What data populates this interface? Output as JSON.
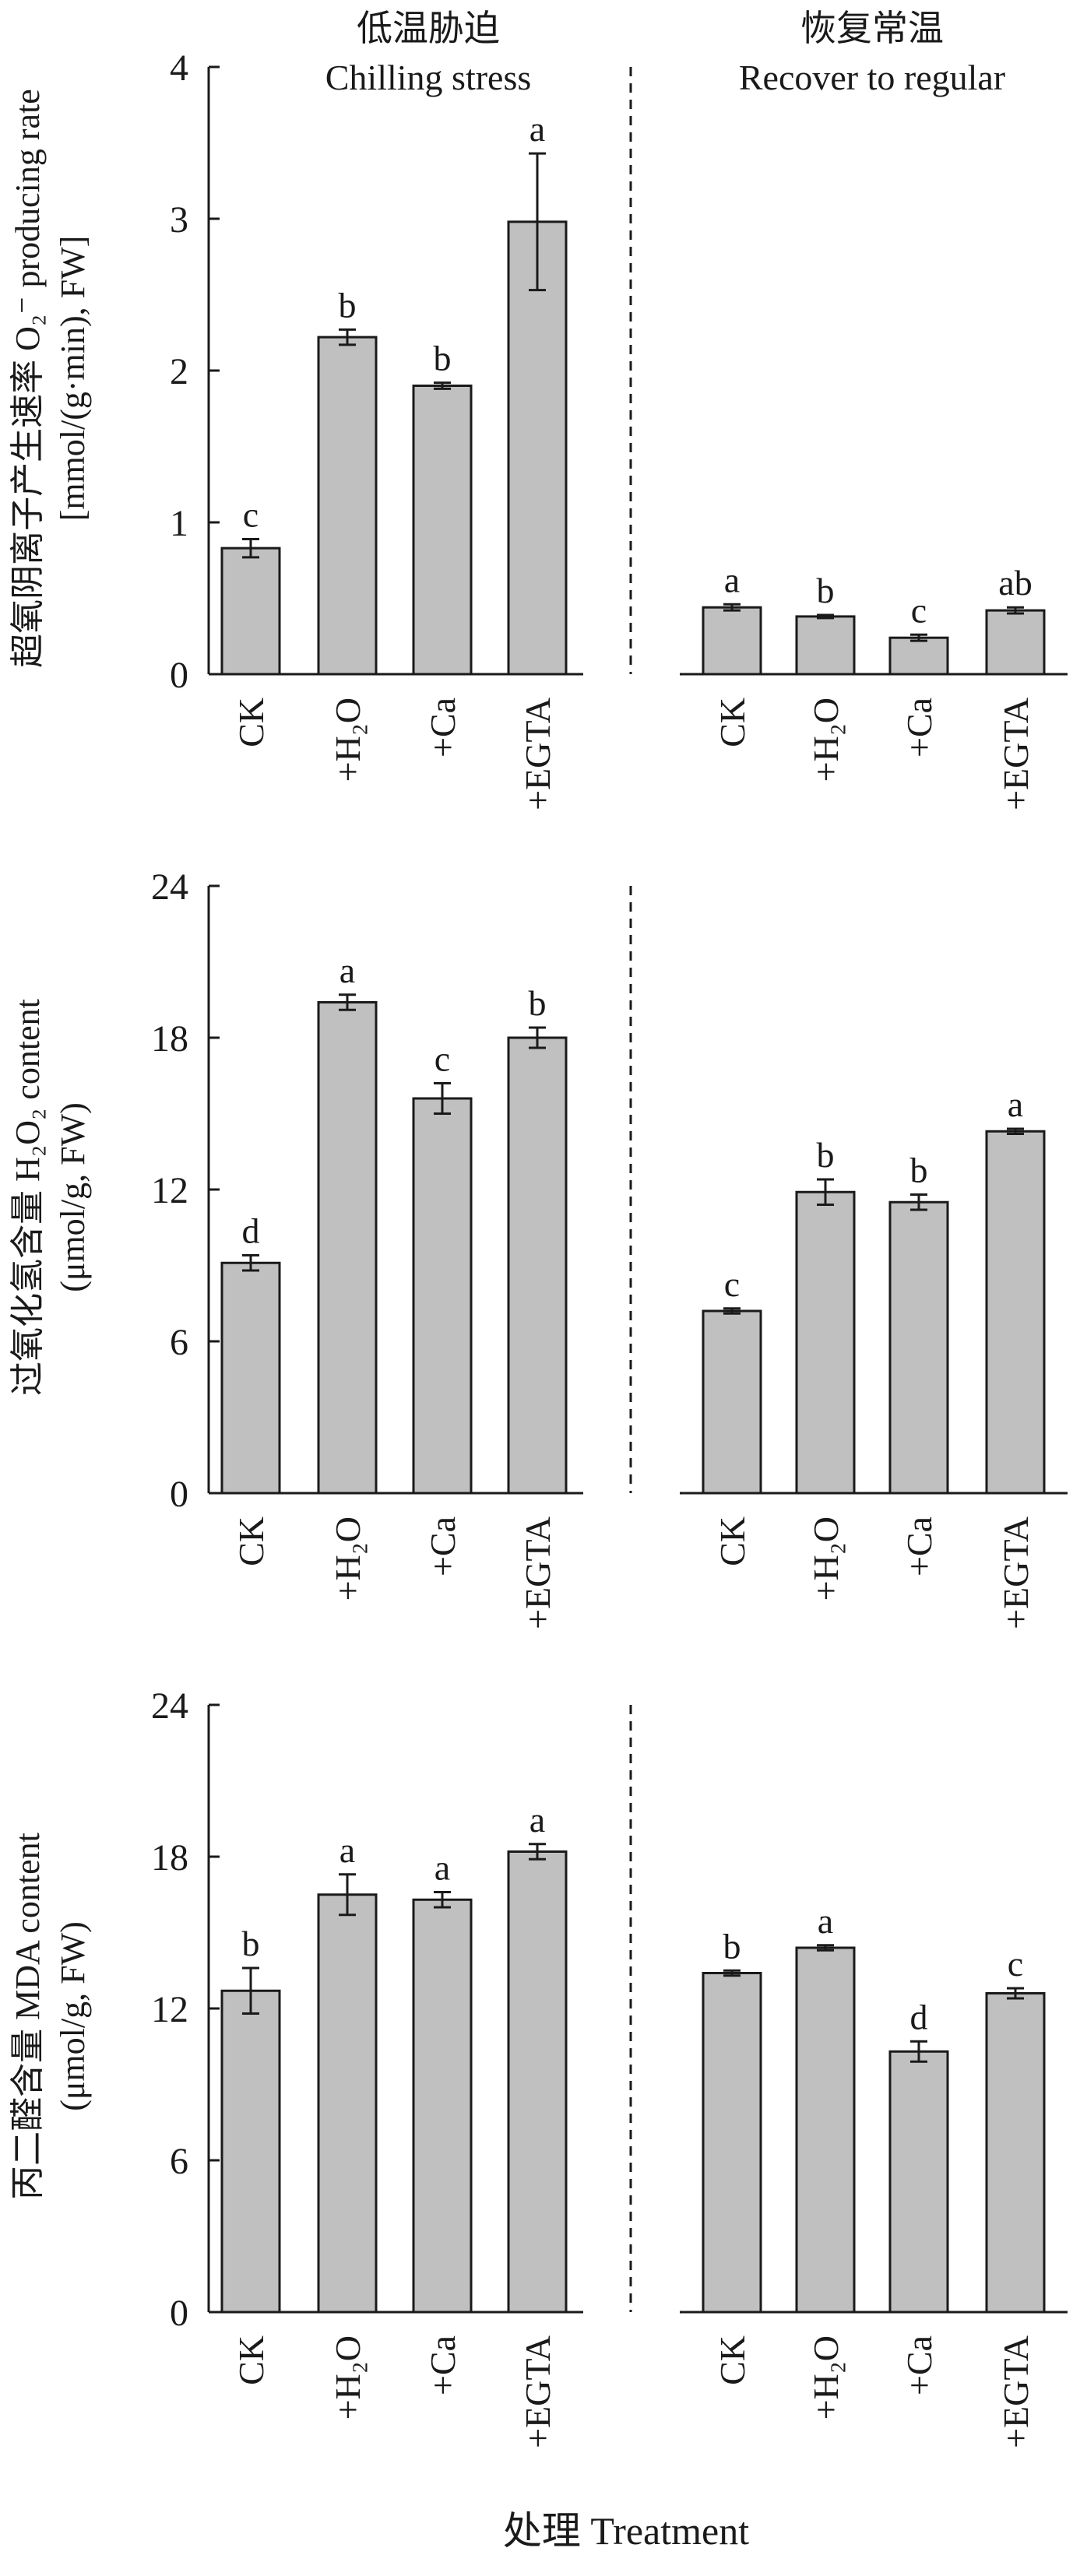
{
  "headers": {
    "left_cn": "低温胁迫",
    "left_en": "Chilling stress",
    "right_cn": "恢复常温",
    "right_en": "Recover to regular"
  },
  "xlabel": "处理 Treatment",
  "style": {
    "bar_fill": "#c0c0c0",
    "stroke": "#1a1a1a"
  },
  "chart_data": [
    {
      "type": "bar",
      "ylabel_lines": [
        "超氧阴离子产生速率 O₂⁻ producing rate",
        "[mmol/(g·min), FW]"
      ],
      "ylim": [
        0,
        4
      ],
      "yticks": [
        0,
        1,
        2,
        3,
        4
      ],
      "groups": [
        {
          "name": "Chilling stress",
          "categories": [
            "CK",
            "+H₂O",
            "+Ca",
            "+EGTA"
          ],
          "values": [
            0.83,
            2.22,
            1.9,
            2.98
          ],
          "errors": [
            0.06,
            0.05,
            0.02,
            0.45
          ],
          "letters": [
            "c",
            "b",
            "b",
            "a"
          ]
        },
        {
          "name": "Recover to regular",
          "categories": [
            "CK",
            "+H₂O",
            "+Ca",
            "+EGTA"
          ],
          "values": [
            0.44,
            0.38,
            0.24,
            0.42
          ],
          "errors": [
            0.02,
            0.01,
            0.02,
            0.02
          ],
          "letters": [
            "a",
            "b",
            "c",
            "ab"
          ]
        }
      ]
    },
    {
      "type": "bar",
      "ylabel_lines": [
        "过氧化氢含量 H₂O₂ content",
        "(μmol/g, FW)"
      ],
      "ylim": [
        0,
        24
      ],
      "yticks": [
        0,
        6,
        12,
        18,
        24
      ],
      "groups": [
        {
          "name": "Chilling stress",
          "categories": [
            "CK",
            "+H₂O",
            "+Ca",
            "+EGTA"
          ],
          "values": [
            9.1,
            19.4,
            15.6,
            18.0
          ],
          "errors": [
            0.3,
            0.3,
            0.6,
            0.4
          ],
          "letters": [
            "d",
            "a",
            "c",
            "b"
          ]
        },
        {
          "name": "Recover to regular",
          "categories": [
            "CK",
            "+H₂O",
            "+Ca",
            "+EGTA"
          ],
          "values": [
            7.2,
            11.9,
            11.5,
            14.3
          ],
          "errors": [
            0.1,
            0.5,
            0.3,
            0.1
          ],
          "letters": [
            "c",
            "b",
            "b",
            "a"
          ]
        }
      ]
    },
    {
      "type": "bar",
      "ylabel_lines": [
        "丙二醛含量 MDA content",
        "(μmol/g, FW)"
      ],
      "ylim": [
        0,
        24
      ],
      "yticks": [
        0,
        6,
        12,
        18,
        24
      ],
      "groups": [
        {
          "name": "Chilling stress",
          "categories": [
            "CK",
            "+H₂O",
            "+Ca",
            "+EGTA"
          ],
          "values": [
            12.7,
            16.5,
            16.3,
            18.2
          ],
          "errors": [
            0.9,
            0.8,
            0.3,
            0.3
          ],
          "letters": [
            "b",
            "a",
            "a",
            "a"
          ]
        },
        {
          "name": "Recover to regular",
          "categories": [
            "CK",
            "+H₂O",
            "+Ca",
            "+EGTA"
          ],
          "values": [
            13.4,
            14.4,
            10.3,
            12.6
          ],
          "errors": [
            0.1,
            0.1,
            0.4,
            0.2
          ],
          "letters": [
            "b",
            "a",
            "d",
            "c"
          ]
        }
      ]
    }
  ]
}
